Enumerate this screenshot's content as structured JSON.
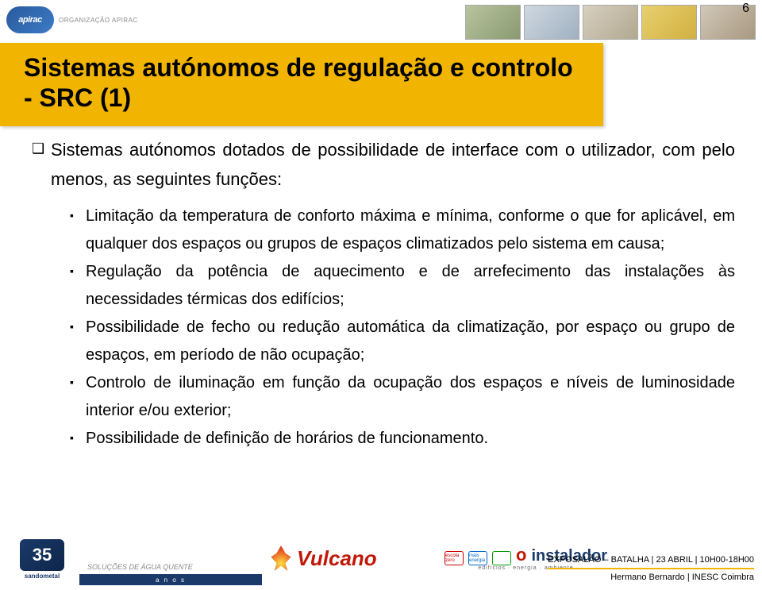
{
  "page_number": "6",
  "header": {
    "logo_text": "apirac",
    "org_label": "ORGANIZAÇÃO APIRAC"
  },
  "title": "Sistemas autónomos de regulação e controlo - SRC (1)",
  "colors": {
    "title_band": "#f1b400",
    "brand_blue": "#1a3a6a",
    "vulcano_red": "#c01808"
  },
  "bullets": {
    "level1": "Sistemas autónomos dotados de possibilidade de interface com o utilizador, com pelo menos, as seguintes funções:",
    "level2": [
      "Limitação da temperatura de conforto máxima e mínima, conforme o que for aplicável, em qualquer dos espaços ou grupos de espaços climatizados pelo sistema em causa;",
      "Regulação da potência de aquecimento e de arrefecimento das instalações às necessidades térmicas dos edifícios;",
      "Possibilidade de fecho ou redução automática da climatização, por espaço ou grupo de espaços, em período de não ocupação;",
      "Controlo de iluminação em função da ocupação dos espaços e níveis de luminosidade interior e/ou exterior;",
      "Possibilidade de definição de horários de funcionamento."
    ]
  },
  "footer": {
    "sandometal_badge": "35",
    "sandometal_label": "sandometal",
    "anos_band": "a n o s",
    "anos_text": "SOLUÇÕES DE ÁGUA QUENTE",
    "vulcano": "Vulcano",
    "instalador_o": "o",
    "instalador_text": "instalador",
    "instalador_sub": "edifícios · energia · ambiente",
    "inst_box1": "escola zero",
    "inst_box2": "mais energia",
    "inst_box3": "",
    "event": "EXPOSALÃO – BATALHA | 23 ABRIL | 10H00-18H00",
    "author": "Hermano Bernardo | INESC Coimbra"
  }
}
